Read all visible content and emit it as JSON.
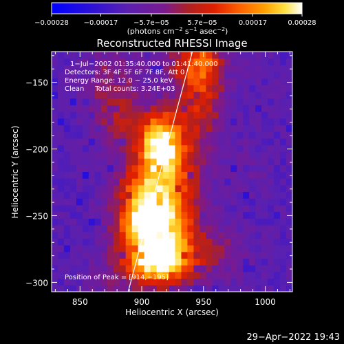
{
  "chart_data": {
    "type": "heatmap",
    "title": "Reconstructed RHESSI Image",
    "xlabel": "Heliocentric X (arcsec)",
    "ylabel": "Heliocentric Y (arcsec)",
    "xlim": [
      827,
      1022
    ],
    "ylim": [
      -307,
      -127
    ],
    "x_ticks": [
      850,
      900,
      950,
      1000
    ],
    "x_tick_labels": [
      "850",
      "900",
      "950",
      "1000"
    ],
    "y_ticks": [
      -150,
      -200,
      -250,
      -300
    ],
    "y_tick_labels": [
      "−150",
      "−200",
      "−250",
      "−300"
    ],
    "colorbar": {
      "range": [
        -0.00028,
        0.00028
      ],
      "ticks": [
        -0.00028,
        -0.00017,
        -5.7e-05,
        5.7e-05,
        0.00017,
        0.00028
      ],
      "tick_labels": [
        "−0.00028",
        "−0.00017",
        "−5.7e−05",
        "5.7e−05",
        "0.00017",
        "0.00028"
      ],
      "unit_main": "(photons cm",
      "unit_exp1": "−2",
      "unit_mid": " s",
      "unit_exp2": "−1",
      "unit_mid2": " asec",
      "unit_exp3": "−2",
      "unit_end": ")"
    },
    "annotations": [
      "1−Jul−2002 01:35:40.000 to 01:41:40.000",
      "Detectors: 3F 4F 5F 6F 7F 8F, Att 0",
      "Energy Range: 12.0 − 25.0 keV",
      "Clean     Total counts: 3.24E+03"
    ],
    "peak_label": "Position of Peak = [914,−195]",
    "peak": [
      914,
      -195
    ],
    "limb_line": [
      [
        889,
        -307
      ],
      [
        941,
        -127
      ]
    ]
  },
  "footer": {
    "timestamp": "29−Apr−2022 19:43"
  }
}
